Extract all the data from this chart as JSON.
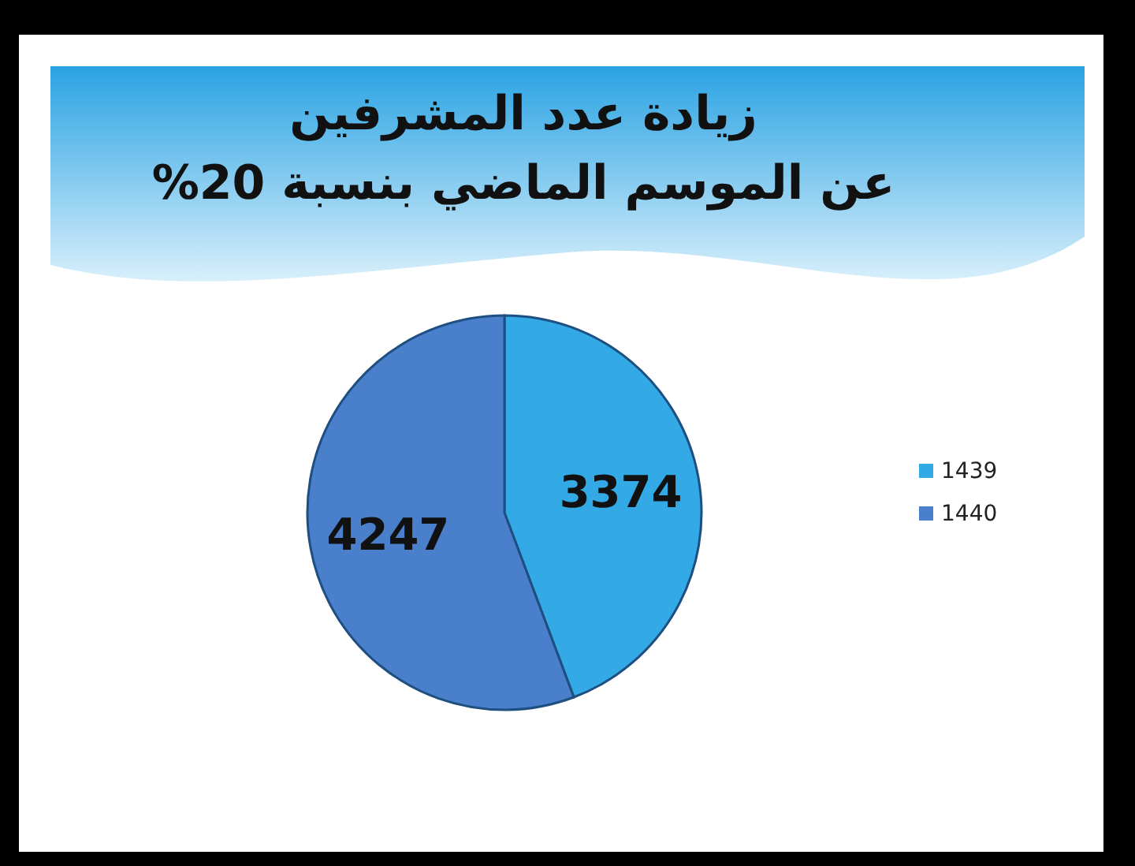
{
  "chart_data": {
    "type": "pie",
    "title": "زيادة عدد المشرفين\nعن الموسم الماضي بنسبة 20%",
    "categories": [
      "1439",
      "1440"
    ],
    "values": [
      3374,
      4247
    ],
    "colors": [
      "#33aae6",
      "#4a7fcc"
    ],
    "data_labels": true,
    "legend": "right"
  }
}
